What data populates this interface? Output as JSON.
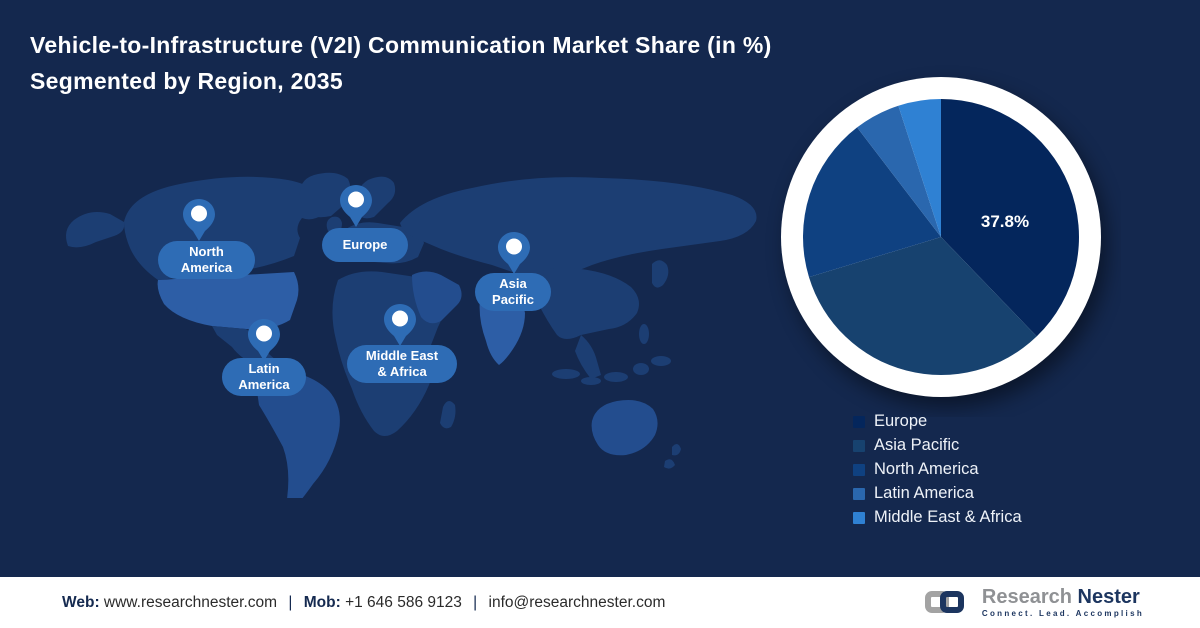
{
  "title": {
    "line1": "Vehicle-to-Infrastructure (V2I) Communication Market Share (in %)",
    "line2": "Segmented by Region, 2035"
  },
  "map": {
    "regions": [
      {
        "label": "North\nAmerica"
      },
      {
        "label": "Europe"
      },
      {
        "label": "Asia\nPacific"
      },
      {
        "label": "Middle East\n& Africa"
      },
      {
        "label": "Latin\nAmerica"
      }
    ]
  },
  "chart_data": {
    "type": "pie",
    "title": "Vehicle-to-Infrastructure (V2I) Communication Market Share (in %) Segmented by Region, 2035",
    "unit": "%",
    "start_angle_deg": 0,
    "direction": "clockwise",
    "legend_position": "bottom-right",
    "slices": [
      {
        "label": "Europe",
        "value": 37.8,
        "color": "#04265c",
        "data_label": "37.8%"
      },
      {
        "label": "Asia Pacific",
        "value": 32.5,
        "color": "#17426f",
        "data_label": ""
      },
      {
        "label": "North America",
        "value": 19.3,
        "color": "#0f4181",
        "data_label": ""
      },
      {
        "label": "Latin America",
        "value": 5.4,
        "color": "#2a67ae",
        "data_label": ""
      },
      {
        "label": "Middle East & Africa",
        "value": 5.0,
        "color": "#2f81d3",
        "data_label": ""
      }
    ]
  },
  "footer": {
    "web_label": "Web:",
    "web_value": "www.researchnester.com",
    "sep1": "|",
    "mob_label": "Mob:",
    "mob_value": "+1 646 586 9123",
    "sep2": "|",
    "email": "info@researchnester.com",
    "logo": {
      "brand_gray": "Research",
      "brand_navy": "Nester",
      "tagline": "Connect. Lead. Accomplish"
    }
  },
  "colors": {
    "background": "#14284e",
    "map_base": "#1c3e73",
    "map_mid": "#234d8e",
    "map_highlight": "#2d5ea6",
    "pin": "#2e6cb5",
    "ring": "#ffffff",
    "title_text": "#ffffff"
  }
}
